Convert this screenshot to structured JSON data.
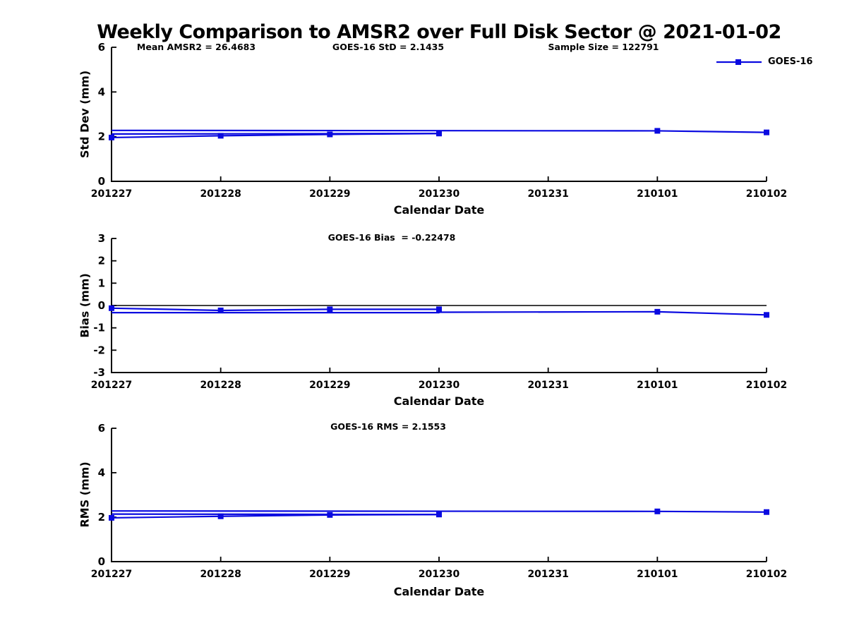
{
  "title": "Weekly Comparison to AMSR2 over Full Disk Sector @ 2021-01-02",
  "legend": {
    "label": "GOES-16"
  },
  "colors": {
    "line": "#0a0ae0",
    "axis": "#000000",
    "text": "#000000",
    "zero_line": "#000000"
  },
  "chart_data": [
    {
      "name": "std_dev",
      "type": "line",
      "ylabel": "Std Dev (mm)",
      "xlabel": "Calendar Date",
      "ylim": [
        0,
        6
      ],
      "yticks": [
        6,
        4,
        2,
        0
      ],
      "grid": false,
      "legend_position": "top-right",
      "categories": [
        "201227",
        "201228",
        "201229",
        "201230",
        "201231",
        "210101",
        "210102"
      ],
      "annotations": [
        {
          "text": "Mean AMSR2 = 26.4683"
        },
        {
          "text": "GOES-16 StD = 2.1435"
        },
        {
          "text": "Sample Size = 122791"
        }
      ],
      "series": [
        {
          "name": "GOES-16",
          "lines": [
            [
              [
                0,
                1.96
              ],
              [
                1,
                2.04
              ],
              [
                2,
                2.1
              ],
              [
                3,
                2.14
              ]
            ],
            [
              [
                0,
                2.12
              ],
              [
                3,
                2.14
              ]
            ],
            [
              [
                0,
                2.28
              ],
              [
                5,
                2.26
              ],
              [
                6,
                2.19
              ]
            ]
          ],
          "markers": [
            [
              0,
              1.96
            ],
            [
              1,
              2.04
            ],
            [
              2,
              2.1
            ],
            [
              3,
              2.14
            ],
            [
              5,
              2.26
            ],
            [
              6,
              2.19
            ]
          ]
        }
      ]
    },
    {
      "name": "bias",
      "type": "line",
      "ylabel": "Bias (mm)",
      "xlabel": "Calendar Date",
      "ylim": [
        -3,
        3
      ],
      "yticks": [
        3,
        2,
        1,
        0,
        -1,
        -2,
        -3
      ],
      "zero_line": true,
      "grid": false,
      "categories": [
        "201227",
        "201228",
        "201229",
        "201230",
        "201231",
        "210101",
        "210102"
      ],
      "annotations": [
        {
          "text": "GOES-16 Bias  = -0.22478"
        }
      ],
      "series": [
        {
          "name": "GOES-16",
          "lines": [
            [
              [
                0,
                -0.12
              ],
              [
                1,
                -0.22
              ],
              [
                2,
                -0.17
              ],
              [
                3,
                -0.17
              ]
            ],
            [
              [
                0,
                -0.32
              ],
              [
                3,
                -0.32
              ],
              [
                3,
                -0.17
              ]
            ],
            [
              [
                3,
                -0.3
              ],
              [
                5,
                -0.28
              ],
              [
                6,
                -0.42
              ]
            ]
          ],
          "markers": [
            [
              0,
              -0.12
            ],
            [
              1,
              -0.22
            ],
            [
              2,
              -0.17
            ],
            [
              3,
              -0.17
            ],
            [
              5,
              -0.28
            ],
            [
              6,
              -0.42
            ]
          ]
        }
      ]
    },
    {
      "name": "rms",
      "type": "line",
      "ylabel": "RMS (mm)",
      "xlabel": "Calendar Date",
      "ylim": [
        0,
        6
      ],
      "yticks": [
        6,
        4,
        2,
        0
      ],
      "grid": false,
      "categories": [
        "201227",
        "201228",
        "201229",
        "201230",
        "201231",
        "210101",
        "210102"
      ],
      "annotations": [
        {
          "text": "GOES-16 RMS = 2.1553"
        }
      ],
      "series": [
        {
          "name": "GOES-16",
          "lines": [
            [
              [
                0,
                1.97
              ],
              [
                1,
                2.04
              ],
              [
                2,
                2.1
              ],
              [
                3,
                2.12
              ]
            ],
            [
              [
                0,
                2.14
              ],
              [
                3,
                2.12
              ]
            ],
            [
              [
                0,
                2.28
              ],
              [
                5,
                2.26
              ],
              [
                6,
                2.23
              ]
            ]
          ],
          "markers": [
            [
              0,
              1.97
            ],
            [
              1,
              2.04
            ],
            [
              2,
              2.1
            ],
            [
              3,
              2.12
            ],
            [
              5,
              2.26
            ],
            [
              6,
              2.23
            ]
          ]
        }
      ]
    }
  ]
}
